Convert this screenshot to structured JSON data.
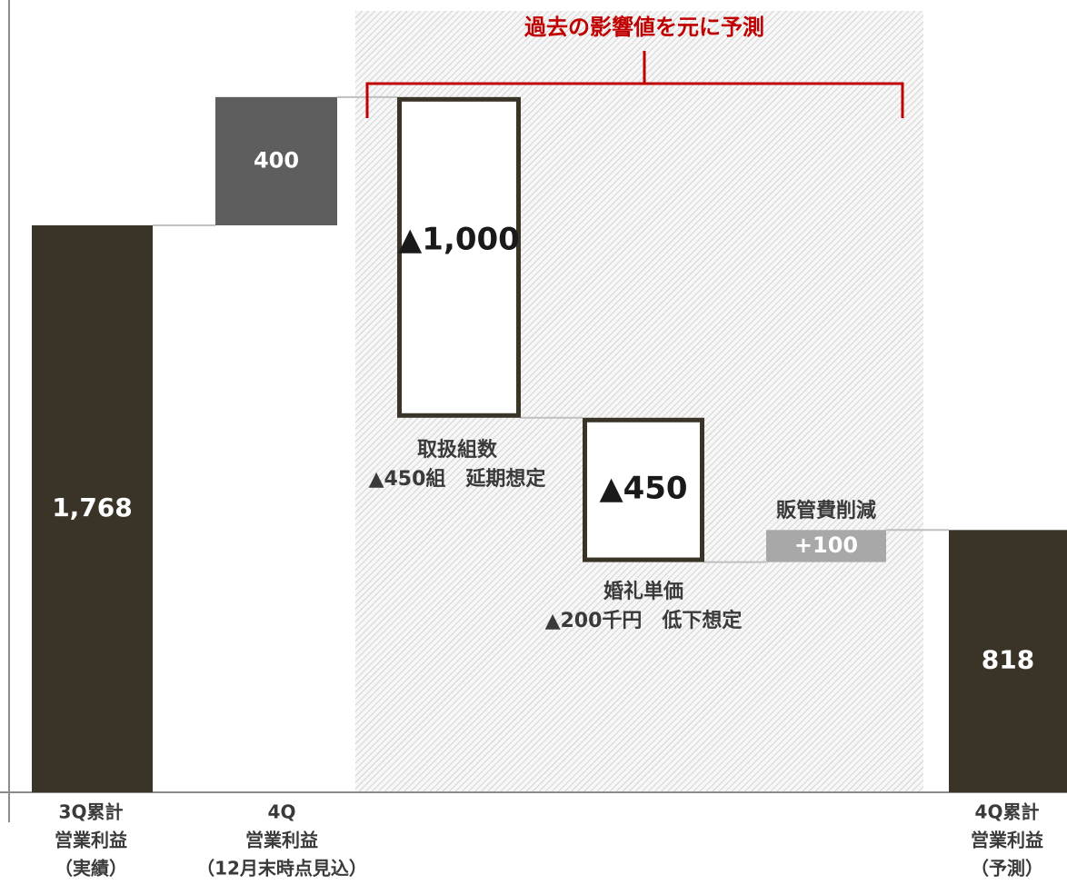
{
  "chart_data": {
    "type": "bar",
    "subtype": "waterfall",
    "categories": [
      "3Q累計\n営業利益\n（実績）",
      "4Q\n営業利益\n（12月末時点見込）",
      "",
      "",
      "",
      "4Q累計\n営業利益\n（予測）"
    ],
    "steps": [
      {
        "kind": "total",
        "value": 1768,
        "label": "1,768",
        "note": ""
      },
      {
        "kind": "increase",
        "value": 400,
        "label": "400",
        "note": ""
      },
      {
        "kind": "decrease",
        "value": -1000,
        "label": "▲1,000",
        "note": "取扱組数\n▲450組　延期想定"
      },
      {
        "kind": "decrease",
        "value": -450,
        "label": "▲450",
        "note": "婚礼単価\n▲200千円　低下想定"
      },
      {
        "kind": "increase",
        "value": 100,
        "label": "+100",
        "note": "販管費削減"
      },
      {
        "kind": "total",
        "value": 818,
        "label": "818",
        "note": ""
      }
    ],
    "annotation": "過去の影響値を元に予測",
    "ylim": [
      0,
      2300
    ],
    "grid": false,
    "colors": {
      "total": "#3a3428",
      "increase_q4": "#5e5e5e",
      "increase_sga": "#a8a8a8",
      "decrease_fill": "#ffffff",
      "decrease_stroke": "#3a3428",
      "bracket": "#c00000",
      "connector": "#bfbfbf",
      "hatch": "#c8c8c8"
    }
  }
}
